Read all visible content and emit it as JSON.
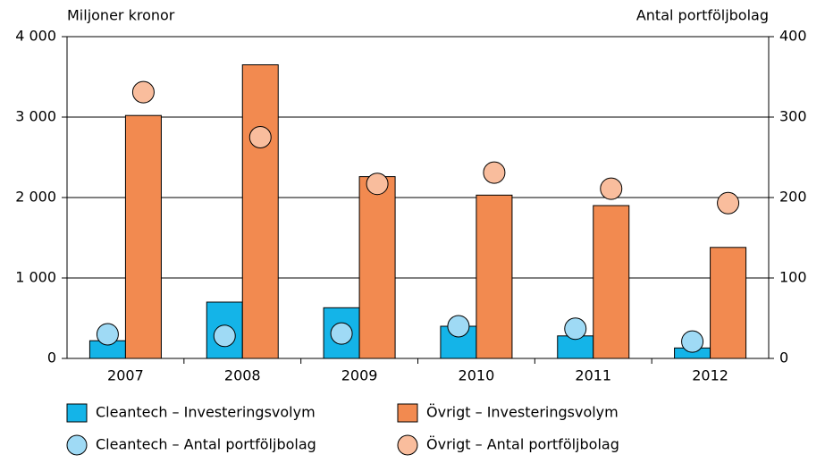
{
  "chart_data": {
    "type": "bar",
    "y_label": "Miljoner kronor",
    "y2_label": "Antal portföljbolag",
    "categories": [
      "2007",
      "2008",
      "2009",
      "2010",
      "2011",
      "2012"
    ],
    "series": [
      {
        "name": "Cleantech – Investeringsvolym",
        "type": "bar",
        "color": "#14b4e8",
        "values": [
          220,
          700,
          630,
          400,
          280,
          130
        ]
      },
      {
        "name": "Övrigt – Investeringsvolym",
        "type": "bar",
        "color": "#f28a50",
        "values": [
          3020,
          3650,
          2260,
          2030,
          1900,
          1380
        ]
      },
      {
        "name": "Cleantech – Antal portföljbolag",
        "type": "scatter",
        "axis": "y2",
        "color": "#9fdaf5",
        "values": [
          30,
          28,
          31,
          40,
          37,
          21
        ]
      },
      {
        "name": "Övrigt – Antal portföljbolag",
        "type": "scatter",
        "axis": "y2",
        "color": "#f9bd9d",
        "values": [
          331,
          275,
          217,
          231,
          211,
          193
        ]
      }
    ],
    "ylim": [
      0,
      4000
    ],
    "yticks": [
      0,
      {
        "value": 1000,
        "label": "1 000"
      },
      {
        "value": 2000,
        "label": "2 000"
      },
      {
        "value": 3000,
        "label": "3 000"
      },
      {
        "value": 4000,
        "label": "4 000"
      }
    ],
    "y2lim": [
      0,
      400
    ],
    "y2ticks": [
      0,
      100,
      200,
      300,
      400
    ],
    "grid": true
  }
}
